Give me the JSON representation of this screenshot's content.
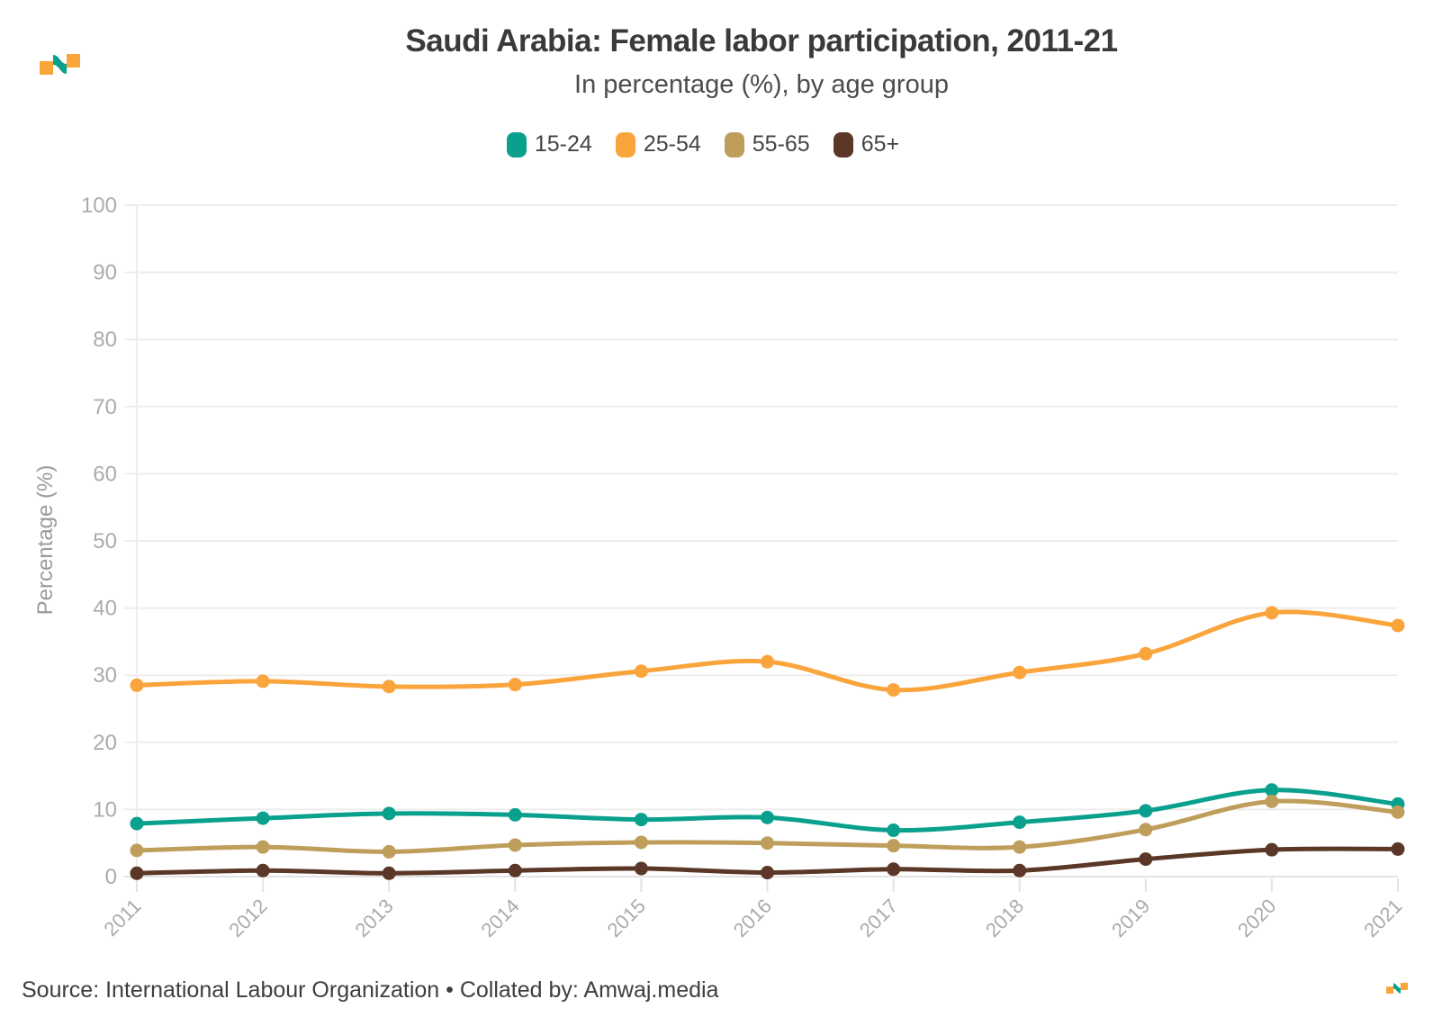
{
  "header": {
    "title": "Saudi Arabia: Female labor participation, 2011-21",
    "subtitle": "In percentage (%), by age group"
  },
  "footer": {
    "source": "Source: International Labour Organization • Collated by: Amwaj.media"
  },
  "branding": {
    "mark": "amwaj-wave-logo",
    "orange": "#FAA53A",
    "teal": "#0AA08E"
  },
  "chart_data": {
    "type": "line",
    "title": "Saudi Arabia: Female labor participation, 2011-21",
    "subtitle": "In percentage (%), by age group",
    "ylabel": "Percentage (%)",
    "ylim": [
      0,
      100
    ],
    "yticks": [
      0,
      10,
      20,
      30,
      40,
      50,
      60,
      70,
      80,
      90,
      100
    ],
    "grid": "horizontal",
    "legend_position": "top",
    "x": [
      2011,
      2012,
      2013,
      2014,
      2015,
      2016,
      2017,
      2018,
      2019,
      2020,
      2021
    ],
    "series": [
      {
        "name": "15-24",
        "color": "#0AA08E",
        "values": [
          7.9,
          8.7,
          9.4,
          9.2,
          8.5,
          8.8,
          6.9,
          8.1,
          9.8,
          12.9,
          10.8
        ]
      },
      {
        "name": "25-54",
        "color": "#FAA43C",
        "values": [
          28.5,
          29.1,
          28.3,
          28.6,
          30.6,
          32.0,
          27.8,
          30.4,
          33.2,
          39.3,
          37.4
        ]
      },
      {
        "name": "55-65",
        "color": "#BF9E5C",
        "values": [
          3.9,
          4.4,
          3.7,
          4.7,
          5.1,
          5.0,
          4.6,
          4.4,
          7.0,
          11.2,
          9.6
        ]
      },
      {
        "name": "65+",
        "color": "#5A3726",
        "values": [
          0.5,
          0.9,
          0.5,
          0.9,
          1.2,
          0.6,
          1.1,
          0.9,
          2.6,
          4.0,
          4.1
        ]
      }
    ],
    "axis_colors": {
      "gridline": "#ededed",
      "tick": "#e3e3e3",
      "tick_label": "#ababab",
      "axis_title": "#9b9b9b"
    }
  }
}
